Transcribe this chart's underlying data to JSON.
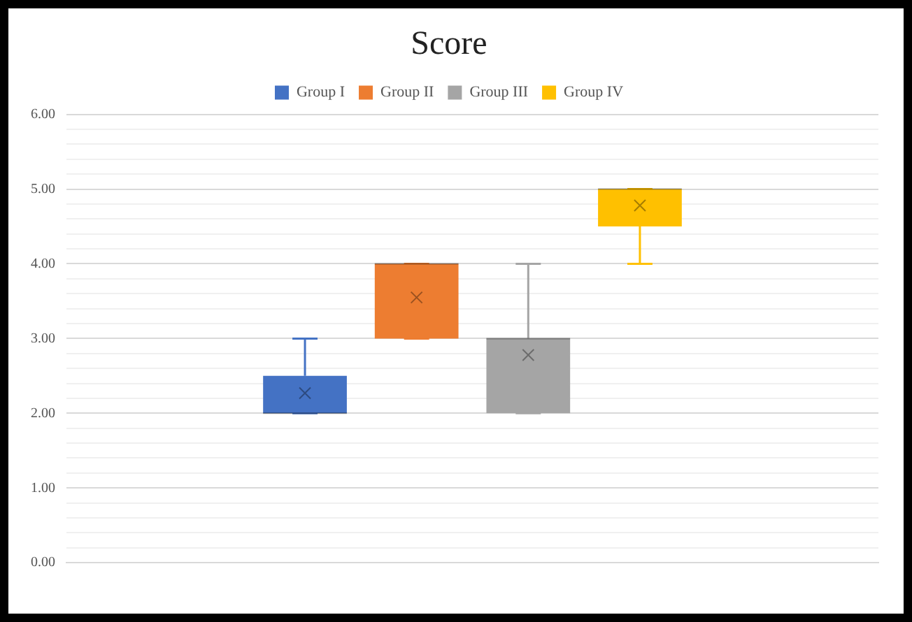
{
  "chart_data": {
    "type": "box",
    "title": "Score",
    "categories": [
      null
    ],
    "series": [
      {
        "name": "Group I",
        "color": "#4472c4",
        "boxes": [
          {
            "low": 2,
            "q1": 2,
            "median": 2,
            "q3": 2.5,
            "high": 3,
            "mean": 2.27
          }
        ]
      },
      {
        "name": "Group II",
        "color": "#ed7d31",
        "boxes": [
          {
            "low": 3,
            "q1": 3,
            "median": 4,
            "q3": 4,
            "high": 4,
            "mean": 3.55
          }
        ]
      },
      {
        "name": "Group III",
        "color": "#a5a5a5",
        "boxes": [
          {
            "low": 2,
            "q1": 2,
            "median": 3,
            "q3": 3,
            "high": 4,
            "mean": 2.78
          }
        ]
      },
      {
        "name": "Group IV",
        "color": "#ffc000",
        "boxes": [
          {
            "low": 4,
            "q1": 4.5,
            "median": 5,
            "q3": 5,
            "high": 5,
            "mean": 4.78
          }
        ]
      }
    ],
    "ylim": [
      0,
      6
    ],
    "yticks": [
      {
        "value": 0,
        "label": "0.00"
      },
      {
        "value": 0.2,
        "label": null
      },
      {
        "value": 0.4,
        "label": null
      },
      {
        "value": 0.6,
        "label": null
      },
      {
        "value": 0.8,
        "label": null
      },
      {
        "value": 1,
        "label": "1.00"
      },
      {
        "value": 1.2,
        "label": null
      },
      {
        "value": 1.4,
        "label": null
      },
      {
        "value": 1.6,
        "label": null
      },
      {
        "value": 1.8,
        "label": null
      },
      {
        "value": 2,
        "label": "2.00"
      },
      {
        "value": 2.2,
        "label": null
      },
      {
        "value": 2.4,
        "label": null
      },
      {
        "value": 2.6,
        "label": null
      },
      {
        "value": 2.8,
        "label": null
      },
      {
        "value": 3,
        "label": "3.00"
      },
      {
        "value": 3.2,
        "label": null
      },
      {
        "value": 3.4,
        "label": null
      },
      {
        "value": 3.6,
        "label": null
      },
      {
        "value": 3.8,
        "label": null
      },
      {
        "value": 4,
        "label": "4.00"
      },
      {
        "value": 4.2,
        "label": null
      },
      {
        "value": 4.4,
        "label": null
      },
      {
        "value": 4.6,
        "label": null
      },
      {
        "value": 4.8,
        "label": null
      },
      {
        "value": 5,
        "label": "5.00"
      },
      {
        "value": 5.2,
        "label": null
      },
      {
        "value": 5.4,
        "label": null
      },
      {
        "value": 5.6,
        "label": null
      },
      {
        "value": 5.8,
        "label": null
      },
      {
        "value": 6,
        "label": "6.00"
      }
    ],
    "grid": "y",
    "legend": "top",
    "marker": "cross"
  }
}
